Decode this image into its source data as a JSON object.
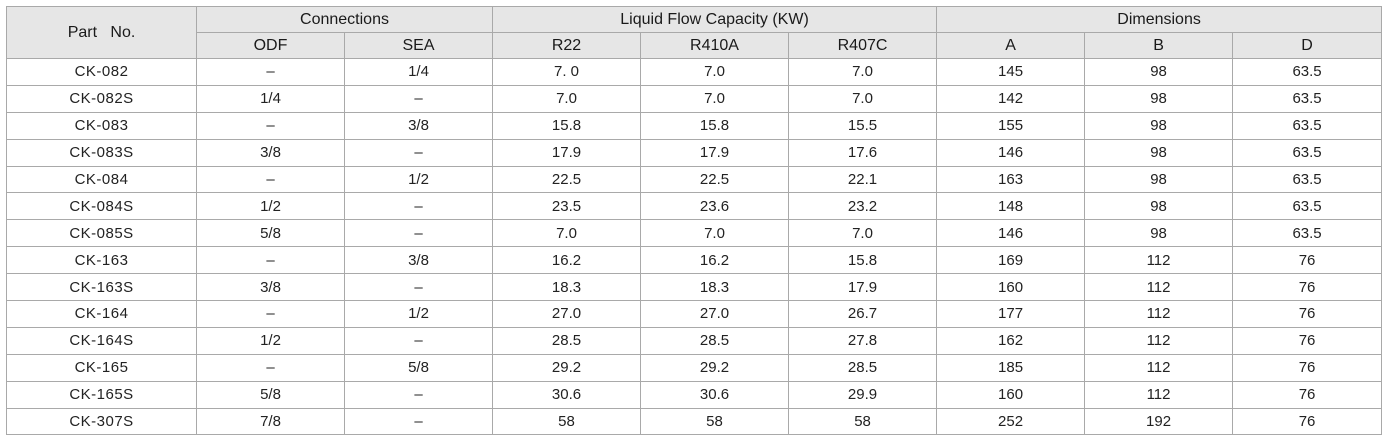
{
  "headers": {
    "part_no": "Part   No.",
    "connections": "Connections",
    "liquid_flow": "Liquid Flow Capacity (KW)",
    "dimensions": "Dimensions",
    "odf": "ODF",
    "sea": "SEA",
    "r22": "R22",
    "r410a": "R410A",
    "r407c": "R407C",
    "a": "A",
    "b": "B",
    "d": "D"
  },
  "rows": [
    {
      "part": "CK-082",
      "odf": "–",
      "sea": "1/4",
      "r22": "7. 0",
      "r410a": "7.0",
      "r407c": "7.0",
      "a": "145",
      "b": "98",
      "d": "63.5"
    },
    {
      "part": "CK-082S",
      "odf": "1/4",
      "sea": "–",
      "r22": "7.0",
      "r410a": "7.0",
      "r407c": "7.0",
      "a": "142",
      "b": "98",
      "d": "63.5"
    },
    {
      "part": "CK-083",
      "odf": "–",
      "sea": "3/8",
      "r22": "15.8",
      "r410a": "15.8",
      "r407c": "15.5",
      "a": "155",
      "b": "98",
      "d": "63.5"
    },
    {
      "part": "CK-083S",
      "odf": "3/8",
      "sea": "–",
      "r22": "17.9",
      "r410a": "17.9",
      "r407c": "17.6",
      "a": "146",
      "b": "98",
      "d": "63.5"
    },
    {
      "part": "CK-084",
      "odf": "–",
      "sea": "1/2",
      "r22": "22.5",
      "r410a": "22.5",
      "r407c": "22.1",
      "a": "163",
      "b": "98",
      "d": "63.5"
    },
    {
      "part": "CK-084S",
      "odf": "1/2",
      "sea": "–",
      "r22": "23.5",
      "r410a": "23.6",
      "r407c": "23.2",
      "a": "148",
      "b": "98",
      "d": "63.5"
    },
    {
      "part": "CK-085S",
      "odf": "5/8",
      "sea": "–",
      "r22": "7.0",
      "r410a": "7.0",
      "r407c": "7.0",
      "a": "146",
      "b": "98",
      "d": "63.5"
    },
    {
      "part": "CK-163",
      "odf": "–",
      "sea": "3/8",
      "r22": "16.2",
      "r410a": "16.2",
      "r407c": "15.8",
      "a": "169",
      "b": "112",
      "d": "76"
    },
    {
      "part": "CK-163S",
      "odf": "3/8",
      "sea": "–",
      "r22": "18.3",
      "r410a": "18.3",
      "r407c": "17.9",
      "a": "160",
      "b": "112",
      "d": "76"
    },
    {
      "part": "CK-164",
      "odf": "–",
      "sea": "1/2",
      "r22": "27.0",
      "r410a": "27.0",
      "r407c": "26.7",
      "a": "177",
      "b": "112",
      "d": "76"
    },
    {
      "part": "CK-164S",
      "odf": "1/2",
      "sea": "–",
      "r22": "28.5",
      "r410a": "28.5",
      "r407c": "27.8",
      "a": "162",
      "b": "112",
      "d": "76"
    },
    {
      "part": "CK-165",
      "odf": "–",
      "sea": "5/8",
      "r22": "29.2",
      "r410a": "29.2",
      "r407c": "28.5",
      "a": "185",
      "b": "112",
      "d": "76"
    },
    {
      "part": "CK-165S",
      "odf": "5/8",
      "sea": "–",
      "r22": "30.6",
      "r410a": "30.6",
      "r407c": "29.9",
      "a": "160",
      "b": "112",
      "d": "76"
    },
    {
      "part": "CK-307S",
      "odf": "7/8",
      "sea": "–",
      "r22": "58",
      "r410a": "58",
      "r407c": "58",
      "a": "252",
      "b": "192",
      "d": "76"
    }
  ]
}
